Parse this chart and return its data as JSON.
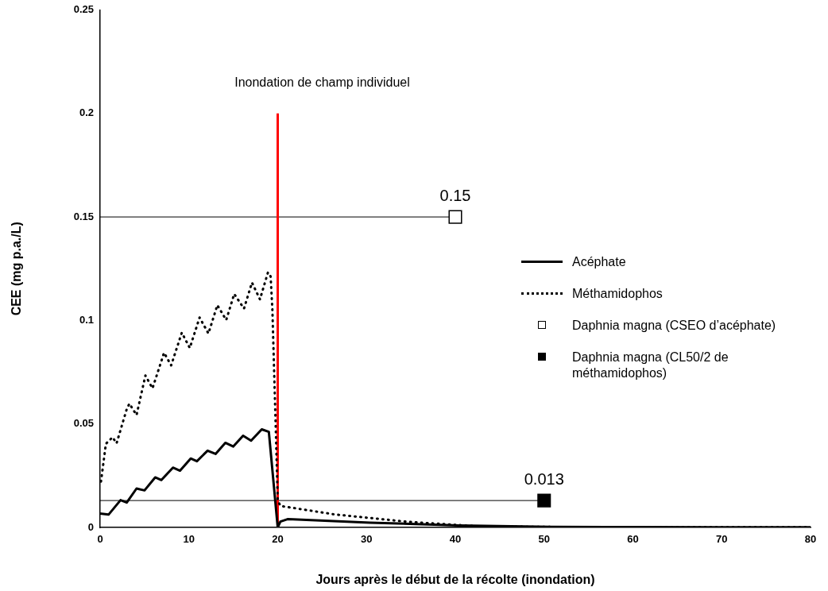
{
  "chart_data": {
    "type": "line",
    "xlabel": "Jours après le début de la récolte (inondation)",
    "ylabel": "CEE (mg p.a./L)",
    "xlim": [
      0,
      80
    ],
    "xticks": [
      0,
      10,
      20,
      30,
      40,
      50,
      60,
      70,
      80
    ],
    "ylim": [
      0,
      0.25
    ],
    "yticks": [
      0,
      0.05,
      0.1,
      0.15,
      0.2,
      0.25
    ],
    "grid": false,
    "legend": "right",
    "annotations": [
      {
        "text": "Inondation de champ individuel",
        "x": 20,
        "y": 0.2
      }
    ],
    "series": [
      {
        "name": "Acéphate",
        "color": "#000000",
        "line_style": "solid",
        "marker": "none",
        "x": [
          0,
          0.95,
          2.3,
          3,
          4.1,
          5,
          6.2,
          6.9,
          8.2,
          9,
          10.2,
          10.9,
          12.1,
          13,
          14.1,
          15,
          16.1,
          17,
          18.2,
          19,
          20,
          20.3,
          21.1,
          21.7,
          30.4,
          40.4,
          50.8,
          60,
          70,
          80
        ],
        "values": [
          0.0067,
          0.0062,
          0.0132,
          0.012,
          0.0188,
          0.0179,
          0.0242,
          0.0229,
          0.0289,
          0.0274,
          0.0333,
          0.032,
          0.0371,
          0.0355,
          0.0409,
          0.0391,
          0.0443,
          0.0419,
          0.0474,
          0.0462,
          0,
          0.0028,
          0.004,
          0.0039,
          0.0023,
          0.001,
          0.0003,
          0.0002,
          0.0001,
          0.0001
        ]
      },
      {
        "name": "Méthamidophos",
        "color": "#000000",
        "line_style": "dotted",
        "marker": "none",
        "x": [
          0.1,
          0.65,
          1.4,
          1.85,
          3,
          3.3,
          4.1,
          5.1,
          5.9,
          7.2,
          8,
          9.2,
          10.1,
          11.2,
          12.2,
          13.2,
          14.2,
          15.1,
          16.2,
          17.1,
          18,
          18.9,
          19.2,
          19.4,
          19.75,
          20,
          20.3,
          26.4,
          34.5,
          42.7,
          55,
          80
        ],
        "values": [
          0.0222,
          0.0404,
          0.0436,
          0.0406,
          0.0572,
          0.0598,
          0.0543,
          0.0734,
          0.0672,
          0.0844,
          0.0783,
          0.0941,
          0.0867,
          0.1014,
          0.0937,
          0.1074,
          0.1002,
          0.1128,
          0.1057,
          0.1183,
          0.1102,
          0.1232,
          0.1213,
          0.105,
          0.052,
          0.0132,
          0.0104,
          0.0063,
          0.0028,
          0.0005,
          0.0001,
          0.0001
        ]
      },
      {
        "color": "#ff0000",
        "line_style": "solid",
        "marker": "none",
        "x": [
          20,
          20
        ],
        "values": [
          0,
          0.2
        ]
      },
      {
        "name": "Daphnia magna (CSEO d’acéphate)",
        "type": "scatter",
        "color": "#ffffff",
        "marker": "square",
        "x": [
          40
        ],
        "values": [
          0.15
        ],
        "value_labels": [
          "0.15"
        ]
      },
      {
        "name": "Daphnia magna (CL50/2 de méthamidophos)",
        "type": "scatter",
        "color": "#000000",
        "marker": "square",
        "x": [
          50
        ],
        "values": [
          0.013
        ],
        "value_labels": [
          "0.013"
        ]
      }
    ]
  }
}
